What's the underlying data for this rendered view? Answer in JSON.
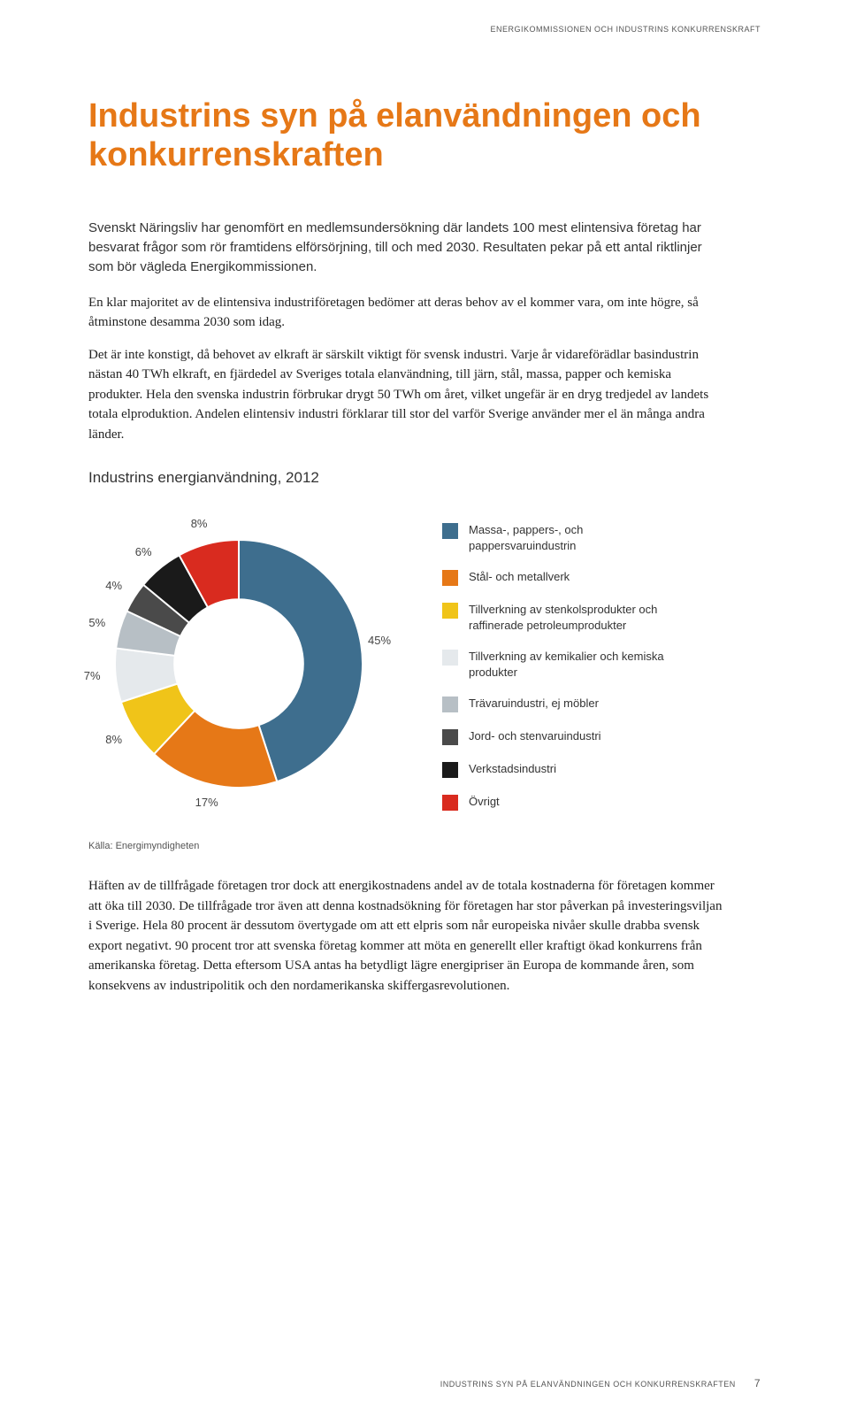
{
  "header": "ENERGIKOMMISSIONEN OCH INDUSTRINS KONKURRENSKRAFT",
  "title": "Industrins syn på elanvändningen och konkurrenskraften",
  "intro": "Svenskt Näringsliv har genomfört en medlemsundersökning där landets 100 mest elintensiva företag har besvarat frågor som rör framtidens elförsörjning, till och med 2030. Resultaten pekar på ett antal riktlinjer som bör vägleda Energikommissionen.",
  "p1": "En klar majoritet av de elintensiva industriföretagen bedömer att deras behov av el kommer vara, om inte högre, så åtminstone desamma 2030 som idag.",
  "p2": "Det är inte konstigt, då behovet av elkraft är särskilt viktigt för svensk industri. Varje år vidareförädlar basindustrin nästan 40 TWh elkraft, en fjärdedel av Sveriges totala elanvändning, till järn, stål, massa, papper och kemiska produkter. Hela den svenska industrin förbrukar drygt 50 TWh om året, vilket ungefär är en dryg tredjedel av landets totala elproduktion. Andelen elintensiv industri förklarar till stor del varför Sverige använder mer el än många andra länder.",
  "chart": {
    "title": "Industrins energianvändning, 2012",
    "type": "donut",
    "inner_radius_ratio": 0.52,
    "background_color": "#ffffff",
    "slices": [
      {
        "label": "Massa-, pappers-, och pappersvaruindustrin",
        "value": 45,
        "color": "#3e6e8e",
        "label_text": "45%"
      },
      {
        "label": "Stål- och metallverk",
        "value": 17,
        "color": "#e67817",
        "label_text": "17%"
      },
      {
        "label": "Tillverkning av stenkolsprodukter och raffinerade petroleumprodukter",
        "value": 8,
        "color": "#f0c419",
        "label_text": "8%"
      },
      {
        "label": "Tillverkning av kemikalier och kemiska produkter",
        "value": 7,
        "color": "#e5e9ec",
        "label_text": "7%"
      },
      {
        "label": "Trävaruindustri, ej möbler",
        "value": 5,
        "color": "#b7bfc5",
        "label_text": "5%"
      },
      {
        "label": "Jord- och stenvaruindustri",
        "value": 4,
        "color": "#4a4a4a",
        "label_text": "4%"
      },
      {
        "label": "Verkstadsindustri",
        "value": 6,
        "color": "#1a1a1a",
        "label_text": "6%"
      },
      {
        "label": "Övrigt",
        "value": 8,
        "color": "#d92b1f",
        "label_text": "8%"
      }
    ],
    "label_fontsize": 13,
    "legend_fontsize": 13,
    "slice_label_color": "#444444"
  },
  "source": "Källa: Energimyndigheten",
  "p3": "Häften av de tillfrågade företagen tror dock att energikostnadens andel av de totala kostnaderna för företagen kommer att öka till 2030. De tillfrågade tror även att denna kostnadsökning för företagen har stor påverkan på investeringsviljan i Sverige. Hela 80 procent är dessutom övertygade om att ett elpris som når europeiska nivåer skulle drabba svensk export negativt. 90 procent tror att svenska företag kommer att möta en generellt eller kraftigt ökad konkurrens från amerikanska företag. Detta eftersom USA antas ha betydligt lägre energipriser än Europa de kommande åren, som konsekvens av industripolitik och den nordamerikanska skiffergasrevolutionen.",
  "footer": "INDUSTRINS SYN PÅ ELANVÄNDNINGEN OCH KONKURRENSKRAFTEN",
  "page_num": "7"
}
